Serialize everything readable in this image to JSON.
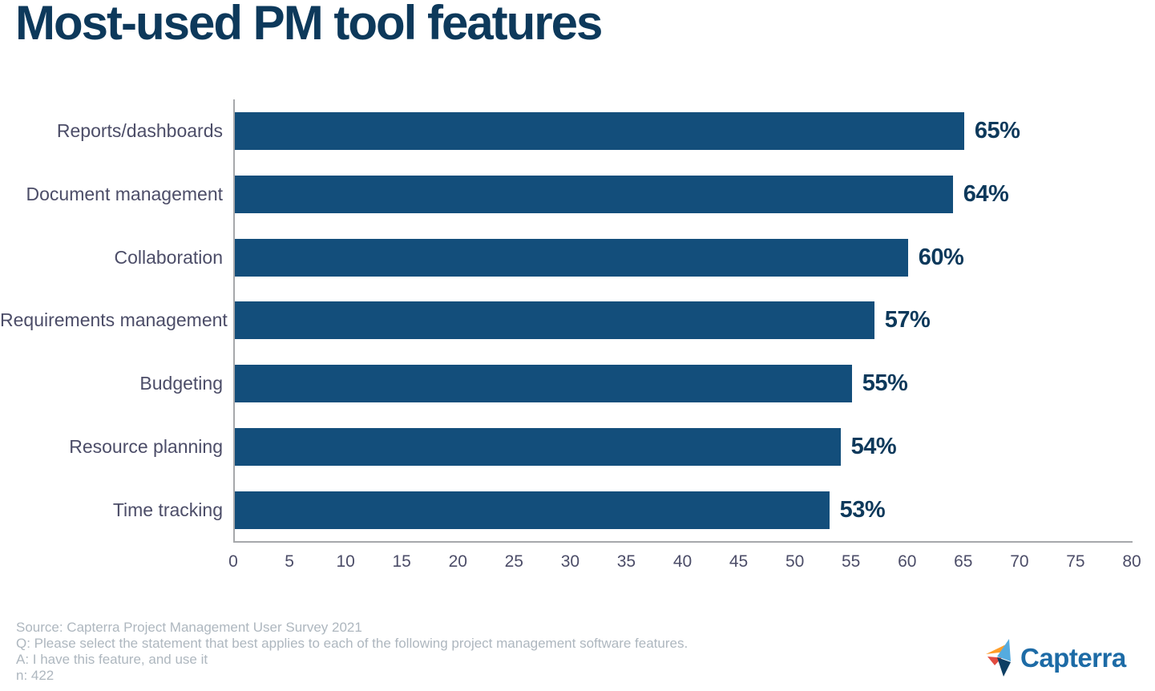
{
  "chart_data": {
    "type": "bar",
    "orientation": "horizontal",
    "title": "Most-used PM tool features",
    "categories": [
      "Reports/dashboards",
      "Document management",
      "Collaboration",
      "Requirements management",
      "Budgeting",
      "Resource planning",
      "Time tracking"
    ],
    "values": [
      65,
      64,
      60,
      57,
      55,
      54,
      53
    ],
    "value_suffix": "%",
    "xlim": [
      0,
      80
    ],
    "x_ticks": [
      0,
      5,
      10,
      15,
      20,
      25,
      30,
      35,
      40,
      45,
      50,
      55,
      60,
      65,
      70,
      75,
      80
    ],
    "xlabel": "",
    "ylabel": "",
    "grid": false,
    "legend": false
  },
  "footer": {
    "source": "Source: Capterra Project Management User Survey 2021",
    "question": "Q: Please select the statement that best applies to each of the following project management software features.",
    "answer": "A: I have this feature, and use it",
    "sample": "n: 422"
  },
  "logo": {
    "text": "Capterra"
  },
  "colors": {
    "navy": "#0d395b",
    "slate": "#4c4d68",
    "axis_gray": "#a6a8ab",
    "footer_gray": "#aeb7bf",
    "bar_blue": "#134e7b",
    "logo_blue": "#1d6ba6",
    "logo_orange": "#ff9d28",
    "logo_red": "#e24c41",
    "logo_lightblue": "#55abdf",
    "logo_navy": "#0d3e63"
  }
}
